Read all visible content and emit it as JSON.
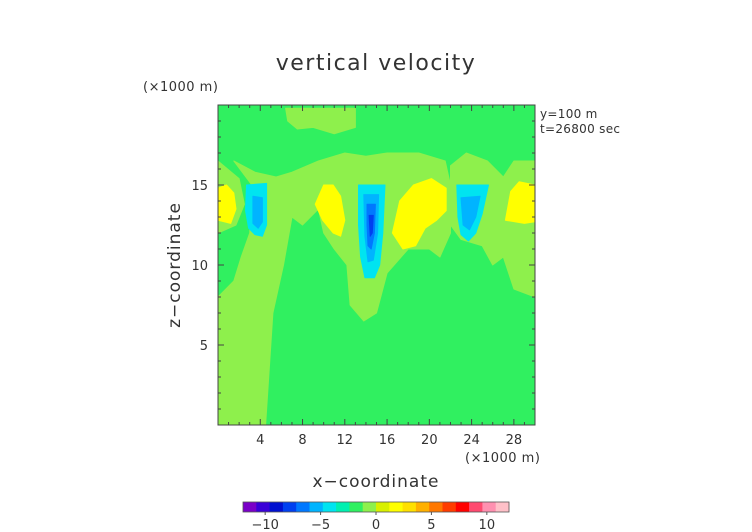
{
  "chart_data": {
    "type": "heatmap",
    "title": "vertical velocity",
    "xlabel": "x−coordinate",
    "ylabel": "z−coordinate",
    "x_unit": "(×1000 m)",
    "y_unit": "(×1000 m)",
    "annotations": [
      "y=100 m",
      "t=26800 sec"
    ],
    "xlim": [
      0,
      30
    ],
    "ylim": [
      0,
      20
    ],
    "x_ticks": [
      4,
      8,
      12,
      16,
      20,
      24,
      28
    ],
    "y_ticks": [
      5,
      10,
      15
    ],
    "colorbar": {
      "range": [
        -12,
        12
      ],
      "ticks": [
        -10,
        -5,
        0,
        5,
        10
      ],
      "tick_labels": [
        "−10",
        "−5",
        "0",
        "5",
        "10"
      ],
      "colors": [
        "#7a00c8",
        "#3a00d8",
        "#0010d0",
        "#0040f0",
        "#0078ff",
        "#00b4ff",
        "#00e4f0",
        "#00f0b0",
        "#30f060",
        "#8ef04c",
        "#d8f000",
        "#ffff00",
        "#ffe000",
        "#ffb000",
        "#ff7800",
        "#ff3c00",
        "#ff0000",
        "#ff4a70",
        "#ff90b0",
        "#ffc0c8"
      ]
    },
    "field_background": "#30f060",
    "features": [
      {
        "kind": "updraft-band",
        "label": "",
        "x_range": [
          0,
          1.5
        ],
        "z_range": [
          0,
          20
        ]
      }
    ],
    "regions": [
      {
        "name": "weak-updraft",
        "value": 1.5,
        "color": "#8ef04c",
        "polygon": [
          [
            0,
            12
          ],
          [
            1.7,
            12.5
          ],
          [
            2.5,
            13.8
          ],
          [
            2,
            15.4
          ],
          [
            0,
            16.5
          ]
        ]
      },
      {
        "name": "weak-updraft",
        "value": 1.5,
        "color": "#8ef04c",
        "polygon": [
          [
            1.5,
            16.5
          ],
          [
            3.5,
            15.8
          ],
          [
            5.5,
            15.5
          ],
          [
            7,
            15.8
          ],
          [
            9.5,
            16.5
          ],
          [
            12,
            17
          ],
          [
            14,
            16.8
          ],
          [
            16,
            17
          ],
          [
            19,
            17
          ],
          [
            21.5,
            16.5
          ],
          [
            22,
            15
          ],
          [
            22,
            12
          ],
          [
            21,
            10.5
          ],
          [
            20,
            11
          ],
          [
            18,
            11
          ],
          [
            16,
            9.5
          ],
          [
            15,
            7
          ],
          [
            13.8,
            6.5
          ],
          [
            12.5,
            7.5
          ],
          [
            12.2,
            10
          ],
          [
            11,
            11
          ],
          [
            10,
            12
          ],
          [
            9.5,
            13.5
          ],
          [
            8,
            12.5
          ],
          [
            7,
            13
          ],
          [
            6.2,
            10
          ],
          [
            5.2,
            7
          ],
          [
            4.5,
            0
          ],
          [
            0,
            0
          ],
          [
            0,
            8
          ],
          [
            1.5,
            9
          ],
          [
            2.2,
            10.5
          ],
          [
            3,
            12
          ],
          [
            3.2,
            15
          ]
        ]
      },
      {
        "name": "weak-updraft",
        "value": 1.5,
        "color": "#8ef04c",
        "polygon": [
          [
            6.4,
            19.8
          ],
          [
            13,
            19.8
          ],
          [
            13,
            18.6
          ],
          [
            11,
            18.2
          ],
          [
            9,
            18.6
          ],
          [
            7.5,
            18.5
          ],
          [
            6.6,
            19
          ]
        ]
      },
      {
        "name": "weak-updraft",
        "value": 1.5,
        "color": "#8ef04c",
        "polygon": [
          [
            22,
            16.2
          ],
          [
            23.5,
            17
          ],
          [
            25.5,
            16.5
          ],
          [
            27,
            15.5
          ],
          [
            28,
            16.5
          ],
          [
            30,
            16.5
          ],
          [
            30,
            8
          ],
          [
            28,
            8.5
          ],
          [
            27,
            10.5
          ],
          [
            26,
            10
          ],
          [
            25,
            11.2
          ],
          [
            23,
            11.6
          ],
          [
            22,
            12.5
          ]
        ]
      },
      {
        "name": "strong-updraft",
        "value": 4,
        "color": "#ffff00",
        "polygon": [
          [
            0,
            12.8
          ],
          [
            1.2,
            12.6
          ],
          [
            1.7,
            13.5
          ],
          [
            1.5,
            14.5
          ],
          [
            0.8,
            15
          ],
          [
            0,
            14.8
          ]
        ]
      },
      {
        "name": "strong-updraft",
        "value": 4,
        "color": "#ffff00",
        "polygon": [
          [
            9.2,
            13.8
          ],
          [
            9.9,
            12.8
          ],
          [
            10.9,
            12
          ],
          [
            11.6,
            11.8
          ],
          [
            12,
            12.8
          ],
          [
            11.6,
            14.3
          ],
          [
            10.9,
            15
          ],
          [
            10,
            15
          ]
        ]
      },
      {
        "name": "strong-updraft",
        "value": 4,
        "color": "#ffff00",
        "polygon": [
          [
            16.5,
            12
          ],
          [
            17.5,
            11
          ],
          [
            18.7,
            11.2
          ],
          [
            19.6,
            12.3
          ],
          [
            20.7,
            12.8
          ],
          [
            21.6,
            13.4
          ],
          [
            21.6,
            14.8
          ],
          [
            20.2,
            15.4
          ],
          [
            18.5,
            15
          ],
          [
            17.2,
            14
          ]
        ]
      },
      {
        "name": "strong-updraft",
        "value": 4,
        "color": "#ffff00",
        "polygon": [
          [
            27.2,
            12.8
          ],
          [
            29,
            12.6
          ],
          [
            30,
            12.7
          ],
          [
            30,
            15
          ],
          [
            28.5,
            15.2
          ],
          [
            27.7,
            14.6
          ]
        ]
      },
      {
        "name": "downdraft",
        "value": -3,
        "color": "#00e4f0",
        "polygon": [
          [
            2.7,
            15
          ],
          [
            4.6,
            15.1
          ],
          [
            4.6,
            12.5
          ],
          [
            4.2,
            11.8
          ],
          [
            3.5,
            11.9
          ],
          [
            2.9,
            12.3
          ],
          [
            2.6,
            13.4
          ]
        ]
      },
      {
        "name": "downdraft",
        "value": -3,
        "color": "#00e4f0",
        "polygon": [
          [
            13.3,
            15
          ],
          [
            15.8,
            15
          ],
          [
            15.6,
            12
          ],
          [
            15.3,
            10
          ],
          [
            14.8,
            9.2
          ],
          [
            13.9,
            9.2
          ],
          [
            13.5,
            10.5
          ],
          [
            13.3,
            12.5
          ]
        ]
      },
      {
        "name": "downdraft",
        "value": -3,
        "color": "#00e4f0",
        "polygon": [
          [
            22.6,
            15
          ],
          [
            25.6,
            15
          ],
          [
            25,
            13.2
          ],
          [
            24.4,
            12
          ],
          [
            23.7,
            11.5
          ],
          [
            23,
            11.9
          ],
          [
            22.7,
            13
          ]
        ]
      },
      {
        "name": "moderate-downdraft",
        "value": -5,
        "color": "#00b4ff",
        "polygon": [
          [
            3.3,
            14.3
          ],
          [
            4.2,
            14.2
          ],
          [
            4.2,
            12.7
          ],
          [
            3.8,
            12.3
          ],
          [
            3.3,
            12.6
          ]
        ]
      },
      {
        "name": "moderate-downdraft",
        "value": -5,
        "color": "#00b4ff",
        "polygon": [
          [
            13.8,
            14.4
          ],
          [
            15.2,
            14.4
          ],
          [
            15.1,
            12
          ],
          [
            14.7,
            10.3
          ],
          [
            14.2,
            10.2
          ],
          [
            13.9,
            11.8
          ]
        ]
      },
      {
        "name": "moderate-downdraft",
        "value": -5,
        "color": "#00b4ff",
        "polygon": [
          [
            23,
            14.2
          ],
          [
            24.8,
            14.3
          ],
          [
            24.4,
            13
          ],
          [
            23.8,
            12.2
          ],
          [
            23.2,
            12.5
          ]
        ]
      },
      {
        "name": "strong-downdraft",
        "value": -7,
        "color": "#0078ff",
        "polygon": [
          [
            14.1,
            13.8
          ],
          [
            14.9,
            13.8
          ],
          [
            14.8,
            12
          ],
          [
            14.5,
            11
          ],
          [
            14.2,
            11.2
          ],
          [
            14.1,
            12.5
          ]
        ]
      },
      {
        "name": "strong-downdraft",
        "value": -9,
        "color": "#0040f0",
        "polygon": [
          [
            14.3,
            13.1
          ],
          [
            14.7,
            13.1
          ],
          [
            14.6,
            12
          ],
          [
            14.4,
            11.8
          ]
        ]
      }
    ]
  }
}
